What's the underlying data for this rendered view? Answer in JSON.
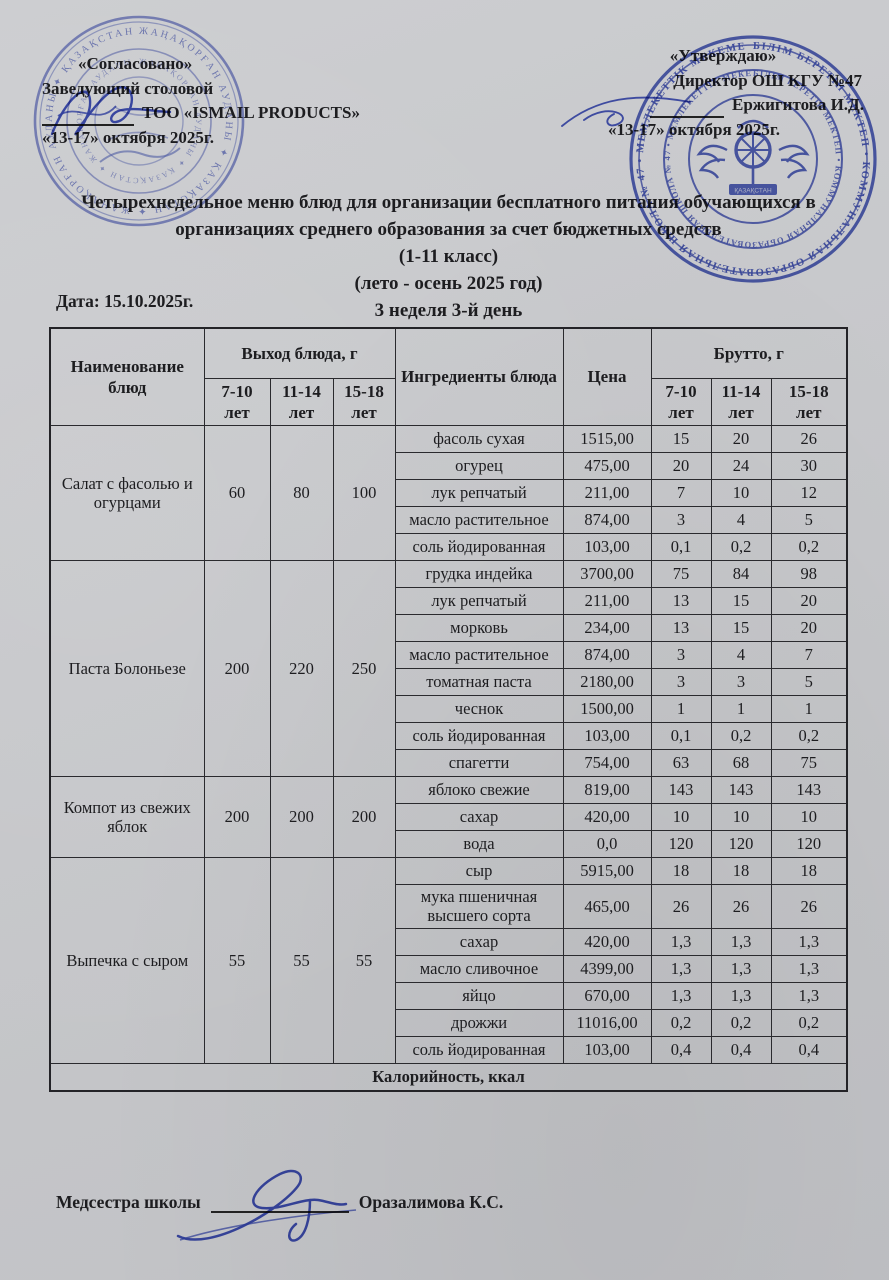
{
  "colors": {
    "paper": "#c7c8cb",
    "ink": "#1d1d20",
    "table_line": "#2a2a2e",
    "stamp_blue": "#2e41b4",
    "stamp_blue_light": "#4a5bbf",
    "signature_blue": "#3b4dc0"
  },
  "approval_left": {
    "line1": "«Согласовано»",
    "line2": "Заведующий столовой",
    "line3": "ТОО «ISMAIL PRODUCTS»",
    "line4": "«13-17» октября 2025г."
  },
  "approval_right": {
    "line1": "«Утверждаю»",
    "line2": "Директор ОШ КГУ №47",
    "line3": "Ержигитова И.Д.",
    "line4": "«13-17» октября 2025г."
  },
  "title": {
    "line1": "Четырехнедельное меню блюд для организации бесплатного питания обучающихся в организациях среднего образования за счет бюджетных средств",
    "line2": "(1-11 класс)",
    "line3": "(лето - осень 2025 год)",
    "line4": "3 неделя 3-й день"
  },
  "date_label": "Дата: 15.10.2025г.",
  "table": {
    "headers": {
      "name": "Наименование блюд",
      "yield": "Выход блюда, г",
      "ingredients": "Ингредиенты блюда",
      "price": "Цена",
      "gross": "Брутто, г",
      "age_groups": [
        "7-10 лет",
        "11-14 лет",
        "15-18 лет"
      ]
    },
    "dishes": [
      {
        "name": "Салат с фасолью и огурцами",
        "yield": [
          "60",
          "80",
          "100"
        ],
        "rows": [
          {
            "ingredient": "фасоль сухая",
            "price": "1515,00",
            "gross": [
              "15",
              "20",
              "26"
            ]
          },
          {
            "ingredient": "огурец",
            "price": "475,00",
            "gross": [
              "20",
              "24",
              "30"
            ]
          },
          {
            "ingredient": "лук репчатый",
            "price": "211,00",
            "gross": [
              "7",
              "10",
              "12"
            ]
          },
          {
            "ingredient": "масло растительное",
            "price": "874,00",
            "gross": [
              "3",
              "4",
              "5"
            ]
          },
          {
            "ingredient": "соль йодированная",
            "price": "103,00",
            "gross": [
              "0,1",
              "0,2",
              "0,2"
            ]
          }
        ]
      },
      {
        "name": "Паста Болоньезе",
        "yield": [
          "200",
          "220",
          "250"
        ],
        "rows": [
          {
            "ingredient": "грудка индейка",
            "price": "3700,00",
            "gross": [
              "75",
              "84",
              "98"
            ]
          },
          {
            "ingredient": "лук репчатый",
            "price": "211,00",
            "gross": [
              "13",
              "15",
              "20"
            ]
          },
          {
            "ingredient": "морковь",
            "price": "234,00",
            "gross": [
              "13",
              "15",
              "20"
            ]
          },
          {
            "ingredient": "масло растительное",
            "price": "874,00",
            "gross": [
              "3",
              "4",
              "7"
            ]
          },
          {
            "ingredient": "томатная паста",
            "price": "2180,00",
            "gross": [
              "3",
              "3",
              "5"
            ]
          },
          {
            "ingredient": "чеснок",
            "price": "1500,00",
            "gross": [
              "1",
              "1",
              "1"
            ]
          },
          {
            "ingredient": "соль йодированная",
            "price": "103,00",
            "gross": [
              "0,1",
              "0,2",
              "0,2"
            ]
          },
          {
            "ingredient": "спагетти",
            "price": "754,00",
            "gross": [
              "63",
              "68",
              "75"
            ]
          }
        ]
      },
      {
        "name": "Компот из свежих яблок",
        "yield": [
          "200",
          "200",
          "200"
        ],
        "rows": [
          {
            "ingredient": "яблоко свежие",
            "price": "819,00",
            "gross": [
              "143",
              "143",
              "143"
            ]
          },
          {
            "ingredient": "сахар",
            "price": "420,00",
            "gross": [
              "10",
              "10",
              "10"
            ]
          },
          {
            "ingredient": "вода",
            "price": "0,0",
            "gross": [
              "120",
              "120",
              "120"
            ]
          }
        ]
      },
      {
        "name": "Выпечка с сыром",
        "yield": [
          "55",
          "55",
          "55"
        ],
        "rows": [
          {
            "ingredient": "сыр",
            "price": "5915,00",
            "gross": [
              "18",
              "18",
              "18"
            ]
          },
          {
            "ingredient": "мука пшеничная высшего сорта",
            "price": "465,00",
            "gross": [
              "26",
              "26",
              "26"
            ]
          },
          {
            "ingredient": "сахар",
            "price": "420,00",
            "gross": [
              "1,3",
              "1,3",
              "1,3"
            ]
          },
          {
            "ingredient": "масло сливочное",
            "price": "4399,00",
            "gross": [
              "1,3",
              "1,3",
              "1,3"
            ]
          },
          {
            "ingredient": "яйцо",
            "price": "670,00",
            "gross": [
              "1,3",
              "1,3",
              "1,3"
            ]
          },
          {
            "ingredient": "дрожжи",
            "price": "11016,00",
            "gross": [
              "0,2",
              "0,2",
              "0,2"
            ]
          },
          {
            "ingredient": "соль йодированная",
            "price": "103,00",
            "gross": [
              "0,4",
              "0,4",
              "0,4"
            ]
          }
        ]
      }
    ],
    "footer_row": "Калорийность, ккал"
  },
  "stamps": {
    "left": {
      "ring_text": "ЖАҢАҚОРҒАН АУДАНЫ ✦ ҚАЗАҚСТАН ✦ ЖАҢАҚОРҒАН АУДАНЫ ✦ ҚАЗАҚСТАН ✦"
    },
    "right": {
      "ring_text": "БІЛІМ БЕРЕТІН МЕКТЕП • КОММУНАЛЬНАЯ ОБРАЗОВАТЕЛЬНАЯ ШКОЛА № 47 • МЕМЛЕКЕТТІК МЕКЕМЕ •",
      "center_label": "ҚАЗАҚСТАН"
    }
  },
  "footer": {
    "role": "Медсестра школы",
    "name": "Оразалимова К.С."
  }
}
